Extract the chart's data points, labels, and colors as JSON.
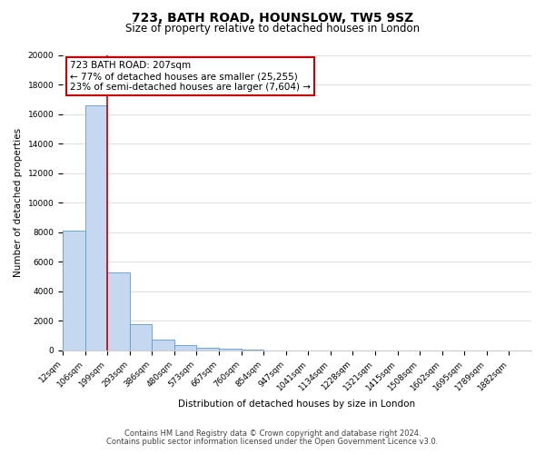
{
  "title": "723, BATH ROAD, HOUNSLOW, TW5 9SZ",
  "subtitle": "Size of property relative to detached houses in London",
  "xlabel": "Distribution of detached houses by size in London",
  "ylabel": "Number of detached properties",
  "bin_labels": [
    "12sqm",
    "106sqm",
    "199sqm",
    "293sqm",
    "386sqm",
    "480sqm",
    "573sqm",
    "667sqm",
    "760sqm",
    "854sqm",
    "947sqm",
    "1041sqm",
    "1134sqm",
    "1228sqm",
    "1321sqm",
    "1415sqm",
    "1508sqm",
    "1602sqm",
    "1695sqm",
    "1789sqm",
    "1882sqm"
  ],
  "bar_values": [
    8100,
    16600,
    5300,
    1800,
    750,
    350,
    200,
    100,
    50,
    0,
    0,
    0,
    0,
    0,
    0,
    0,
    0,
    0,
    0,
    0
  ],
  "bar_color": "#c5d8f0",
  "bar_edge_color": "#5b9bd5",
  "red_line_x": 2,
  "red_line_color": "#cc0000",
  "annotation_text_line1": "723 BATH ROAD: 207sqm",
  "annotation_text_line2": "← 77% of detached houses are smaller (25,255)",
  "annotation_text_line3": "23% of semi-detached houses are larger (7,604) →",
  "ylim": [
    0,
    20000
  ],
  "yticks": [
    0,
    2000,
    4000,
    6000,
    8000,
    10000,
    12000,
    14000,
    16000,
    18000,
    20000
  ],
  "footer_line1": "Contains HM Land Registry data © Crown copyright and database right 2024.",
  "footer_line2": "Contains public sector information licensed under the Open Government Licence v3.0.",
  "bg_color": "#ffffff",
  "plot_bg_color": "#ffffff",
  "grid_color": "#e0e0e0",
  "title_fontsize": 10,
  "subtitle_fontsize": 8.5,
  "axis_label_fontsize": 7.5,
  "tick_fontsize": 6.5,
  "footer_fontsize": 6,
  "ann_fontsize": 7.5
}
